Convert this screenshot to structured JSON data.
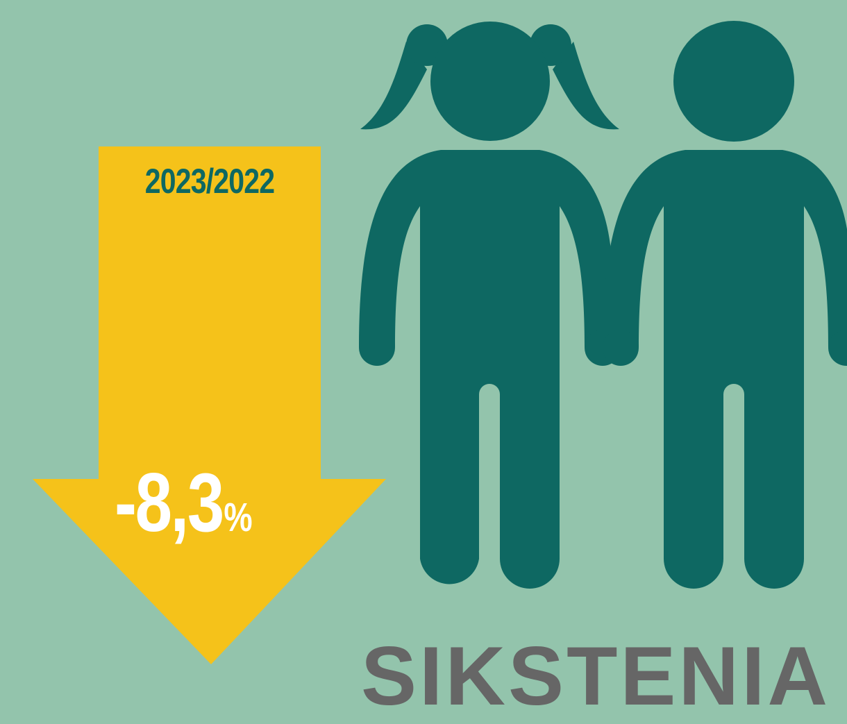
{
  "infographic": {
    "period_label": "2023/2022",
    "change_value": "-8,3",
    "change_unit": "%",
    "change_percent": -8.3,
    "icons": [
      "down-arrow-icon",
      "girl-icon",
      "boy-icon"
    ],
    "bottom_word": "SIKSTENIA"
  },
  "colors": {
    "background": "#93c4ac",
    "arrow": "#f5c21a",
    "figures": "#0e6862",
    "text_light": "#ffffff",
    "text_bottom": "#666666"
  }
}
